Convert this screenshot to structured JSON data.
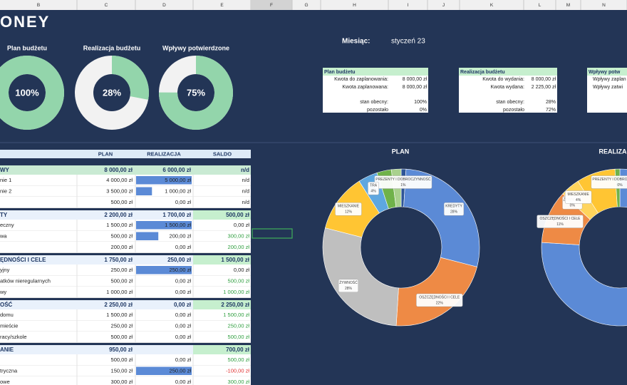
{
  "columns": [
    "B",
    "C",
    "D",
    "E",
    "F",
    "G",
    "H",
    "I",
    "J",
    "K",
    "L",
    "M",
    "N"
  ],
  "logo": "ONEY",
  "gauges": [
    {
      "title": "Plan budżetu",
      "value": 100,
      "label": "100%"
    },
    {
      "title": "Realizacja budżetu",
      "value": 28,
      "label": "28%"
    },
    {
      "title": "Wpływy potwierdzone",
      "value": 75,
      "label": "75%"
    }
  ],
  "month": {
    "label": "Miesiąc:",
    "value": "styczeń 23"
  },
  "summaries": [
    {
      "title": "Plan budżetu",
      "rows": [
        [
          "Kwota do zaplanowania:",
          "8 000,00 zł"
        ],
        [
          "Kwota zaplanowana:",
          "8 000,00 zł"
        ],
        [
          "stan obecny:",
          "100%"
        ],
        [
          "pozostało",
          "0%"
        ]
      ]
    },
    {
      "title": "Realizacja budżetu",
      "rows": [
        [
          "Kwota do wydania:",
          "8 000,00 zł"
        ],
        [
          "Kwota wydana:",
          "2 225,00 zł"
        ],
        [
          "stan obecny:",
          "28%"
        ],
        [
          "pozostało",
          "72%"
        ]
      ]
    },
    {
      "title": "Wpływy potw",
      "rows": [
        [
          "Wpływy zaplan"
        ],
        [
          "Wpływy zatwi"
        ]
      ]
    }
  ],
  "table": {
    "headers": [
      "PLAN",
      "REALIZACJA",
      "SALDO"
    ],
    "sections": [
      {
        "header": [
          "WY",
          "8 000,00 zł",
          "6 000,00 zł",
          "n/d"
        ],
        "rows": [
          [
            "nie 1",
            "4 000,00 zł",
            "5 000,00 zł",
            "n/d"
          ],
          [
            "nie 2",
            "3 500,00 zł",
            "1 000,00 zł",
            "n/d"
          ],
          [
            null,
            "500,00 zł",
            "0,00 zł",
            "n/d"
          ]
        ]
      },
      {
        "header": [
          "TY",
          "2 200,00 zł",
          "1 700,00 zł",
          "500,00 zł"
        ],
        "rows": [
          [
            "eczny",
            "1 500,00 zł",
            "1 500,00 zł",
            "0,00 zł"
          ],
          [
            "wa",
            "500,00 zł",
            "200,00 zł",
            "300,00 zł"
          ],
          [
            null,
            "200,00 zł",
            "0,00 zł",
            "200,00 zł"
          ]
        ]
      },
      {
        "header": [
          "ĘDNOŚCI I CELE",
          "1 750,00 zł",
          "250,00 zł",
          "1 500,00 zł"
        ],
        "rows": [
          [
            "yjny",
            "250,00 zł",
            "250,00 zł",
            "0,00 zł"
          ],
          [
            "atków nieregularnych",
            "500,00 zł",
            "0,00 zł",
            "500,00 zł"
          ],
          [
            "wy",
            "1 000,00 zł",
            "0,00 zł",
            "1 000,00 zł"
          ]
        ]
      },
      {
        "header": [
          "OŚĆ",
          "2 250,00 zł",
          "0,00 zł",
          "2 250,00 zł"
        ],
        "rows": [
          [
            "domu",
            "1 500,00 zł",
            "0,00 zł",
            "1 500,00 zł"
          ],
          [
            "mieście",
            "250,00 zł",
            "0,00 zł",
            "250,00 zł"
          ],
          [
            "racy/szkole",
            "500,00 zł",
            "0,00 zł",
            "500,00 zł"
          ]
        ]
      },
      {
        "header": [
          "ANIE",
          "950,00 zł",
          null,
          "700,00 zł"
        ],
        "rows": [
          [
            null,
            "500,00 zł",
            "0,00 zł",
            "500,00 zł"
          ],
          [
            "tryczna",
            "150,00 zł",
            "250,00 zł",
            "-100,00 zł"
          ],
          [
            "owe",
            "300,00 zł",
            "0,00 zł",
            "300,00 zł"
          ]
        ]
      }
    ]
  },
  "pies": [
    {
      "type": "pie",
      "title": "PLAN",
      "categories": [
        "PREZENTY I DOBROCZYNNOŚĆ",
        "KREDYTY",
        "OSZCZĘDNOŚCI I CELE",
        "ŻYWNOŚĆ",
        "MIESZKANIE",
        "TRA",
        null,
        null
      ],
      "values": [
        1,
        28,
        22,
        28,
        12,
        4,
        3,
        2
      ],
      "value_labels": [
        "1%",
        "28%",
        "22%",
        "28%",
        "12%",
        "4%",
        null,
        null
      ],
      "colors": [
        "#2e5597",
        "#5b8ad6",
        "#ee8a45",
        "#bfbfbf",
        "#ffc533",
        "#5ea7e0",
        "#6fb24a",
        "#a9d18e"
      ]
    },
    {
      "type": "pie",
      "title": "REALIZACJA",
      "categories": [
        "PREZENTY I DOBROCZYNNOŚĆ",
        null,
        "OSZCZĘDNOŚCI I CELE",
        "ŻYWNOŚĆ",
        "MIESZKANIE",
        null,
        null
      ],
      "values": [
        0,
        76,
        11,
        0,
        4,
        8,
        1
      ],
      "value_labels": [
        "0%",
        null,
        "11%",
        "0%",
        "4%",
        null,
        null
      ],
      "colors": [
        "#2e5597",
        "#5b8ad6",
        "#ee8a45",
        "#bfbfbf",
        "#ffd45c",
        "#ffc533",
        "#6fb24a"
      ]
    }
  ]
}
